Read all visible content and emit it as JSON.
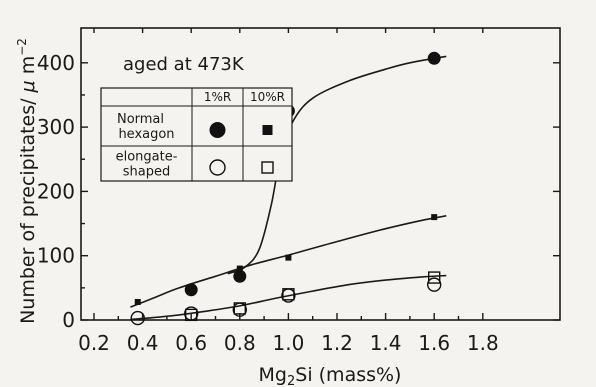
{
  "chart_data": {
    "type": "scatter",
    "annotation": "aged at 473K",
    "xlabel_parts": [
      "Mg",
      "2",
      "Si (mass%)"
    ],
    "ylabel_parts": [
      "Number of precipitates/ ",
      "μ",
      " m",
      "−2"
    ],
    "xlim": [
      0.2,
      1.8
    ],
    "ylim": [
      0,
      450
    ],
    "x_ticks": [
      0.2,
      0.4,
      0.6,
      0.8,
      1.0,
      1.2,
      1.4,
      1.6,
      1.8
    ],
    "x_tick_labels": [
      "0.2",
      "0.4",
      "0.6",
      "0.8",
      "1.0",
      "1.2",
      "1.4",
      "1.6",
      "1.8"
    ],
    "y_ticks": [
      0,
      100,
      200,
      300,
      400
    ],
    "y_tick_labels": [
      "0",
      "100",
      "200",
      "300",
      "400"
    ],
    "legend": {
      "col_headers": [
        "1%R",
        "10%R"
      ],
      "row_labels": [
        [
          "Normal",
          "hexagon"
        ],
        [
          "elongate-",
          "shaped"
        ]
      ]
    },
    "series": [
      {
        "name": "Normal hexagon 1%R",
        "marker": "filled-circle",
        "points": [
          [
            0.6,
            47
          ],
          [
            0.8,
            68
          ],
          [
            1.0,
            325
          ],
          [
            1.6,
            407
          ]
        ],
        "curve": [
          [
            0.75,
            72
          ],
          [
            0.82,
            82
          ],
          [
            0.88,
            110
          ],
          [
            0.93,
            180
          ],
          [
            0.97,
            260
          ],
          [
            1.02,
            310
          ],
          [
            1.1,
            345
          ],
          [
            1.25,
            372
          ],
          [
            1.4,
            390
          ],
          [
            1.5,
            400
          ],
          [
            1.65,
            410
          ]
        ]
      },
      {
        "name": "Normal hexagon 10%R",
        "marker": "filled-square",
        "points": [
          [
            0.38,
            28
          ],
          [
            0.8,
            80
          ],
          [
            1.0,
            97
          ],
          [
            1.6,
            160
          ]
        ],
        "curve": [
          [
            0.35,
            20
          ],
          [
            0.45,
            35
          ],
          [
            0.55,
            50
          ],
          [
            0.7,
            68
          ],
          [
            0.85,
            86
          ],
          [
            1.0,
            101
          ],
          [
            1.2,
            122
          ],
          [
            1.4,
            142
          ],
          [
            1.55,
            155
          ],
          [
            1.65,
            162
          ]
        ]
      },
      {
        "name": "elongate-shaped 1%R",
        "marker": "open-circle",
        "points": [
          [
            0.38,
            3
          ],
          [
            0.6,
            10
          ],
          [
            0.8,
            16
          ],
          [
            1.0,
            38
          ],
          [
            1.6,
            55
          ]
        ],
        "curve": [
          [
            0.35,
            1
          ],
          [
            0.45,
            4
          ],
          [
            0.55,
            8
          ],
          [
            0.65,
            13
          ],
          [
            0.8,
            22
          ],
          [
            0.95,
            34
          ],
          [
            1.1,
            45
          ],
          [
            1.25,
            55
          ],
          [
            1.4,
            62
          ],
          [
            1.55,
            67
          ],
          [
            1.65,
            69
          ]
        ]
      },
      {
        "name": "elongate-shaped 10%R",
        "marker": "open-square",
        "points": [
          [
            0.6,
            8
          ],
          [
            0.8,
            18
          ],
          [
            1.0,
            40
          ],
          [
            1.6,
            66
          ]
        ]
      }
    ]
  }
}
